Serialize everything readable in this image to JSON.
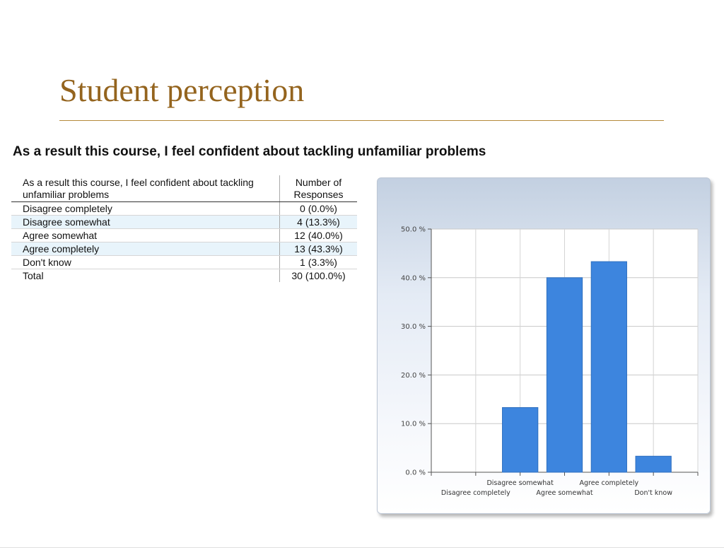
{
  "slide": {
    "title": "Student perception"
  },
  "question": "As a result this course, I feel confident about tackling unfamiliar problems",
  "table": {
    "header_label": "As a result this course, I feel confident about tackling unfamiliar problems",
    "header_count": "Number of Responses",
    "rows": [
      {
        "label": "Disagree completely",
        "count": "0 (0.0%)"
      },
      {
        "label": "Disagree somewhat",
        "count": "4 (13.3%)"
      },
      {
        "label": "Agree somewhat",
        "count": "12 (40.0%)"
      },
      {
        "label": "Agree completely",
        "count": "13 (43.3%)"
      },
      {
        "label": "Don't know",
        "count": "1 (3.3%)"
      },
      {
        "label": "Total",
        "count": "30 (100.0%)"
      }
    ]
  },
  "chart_data": {
    "type": "bar",
    "categories": [
      "Disagree completely",
      "Disagree somewhat",
      "Agree somewhat",
      "Agree completely",
      "Don't know"
    ],
    "values": [
      0.0,
      13.3,
      40.0,
      43.3,
      3.3
    ],
    "ylim": [
      0,
      50
    ],
    "yticks": [
      "0.0 %",
      "10.0 %",
      "20.0 %",
      "30.0 %",
      "40.0 %",
      "50.0 %"
    ],
    "grid": true,
    "bar_color": "#3d85de"
  }
}
